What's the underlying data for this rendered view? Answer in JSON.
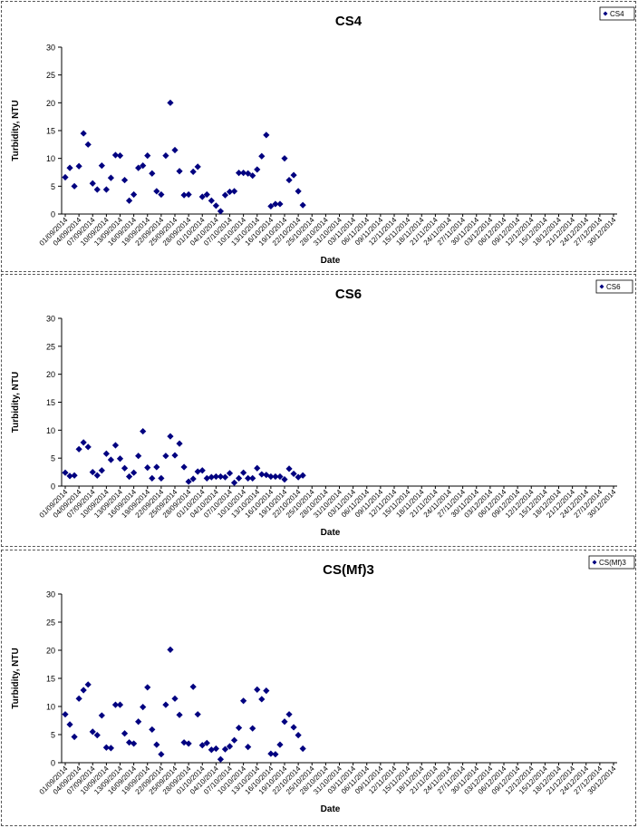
{
  "chart_data": [
    {
      "type": "scatter",
      "title": "CS4",
      "xlabel": "Date",
      "ylabel": "Turbidity, NTU",
      "ylim": [
        0,
        30
      ],
      "yticks": [
        0,
        5,
        10,
        15,
        20,
        25,
        30
      ],
      "legend": "top-right",
      "series": [
        {
          "name": "CS4",
          "color": "#000080",
          "marker": "diamond"
        }
      ],
      "x_tick_labels": [
        "01/09/2014",
        "04/09/2014",
        "07/09/2014",
        "10/09/2014",
        "13/09/2014",
        "16/09/2014",
        "19/09/2014",
        "22/09/2014",
        "25/09/2014",
        "28/09/2014",
        "01/10/2014",
        "04/10/2014",
        "07/10/2014",
        "10/10/2014",
        "13/10/2014",
        "16/10/2014",
        "19/10/2014",
        "22/10/2014",
        "25/10/2014",
        "28/10/2014",
        "31/10/2014",
        "03/11/2014",
        "06/11/2014",
        "09/11/2014",
        "12/11/2014",
        "15/11/2014",
        "18/11/2014",
        "21/11/2014",
        "24/11/2014",
        "27/11/2014",
        "30/11/2014",
        "03/12/2014",
        "06/12/2014",
        "09/12/2014",
        "12/12/2014",
        "15/12/2014",
        "18/12/2014",
        "21/12/2014",
        "24/12/2014",
        "27/12/2014",
        "30/12/2014"
      ],
      "points": [
        {
          "x": "01/09/2014",
          "y": 6.6
        },
        {
          "x": "02/09/2014",
          "y": 8.3
        },
        {
          "x": "03/09/2014",
          "y": 5.0
        },
        {
          "x": "04/09/2014",
          "y": 8.6
        },
        {
          "x": "05/09/2014",
          "y": 14.5
        },
        {
          "x": "06/09/2014",
          "y": 12.5
        },
        {
          "x": "07/09/2014",
          "y": 5.5
        },
        {
          "x": "08/09/2014",
          "y": 4.4
        },
        {
          "x": "09/09/2014",
          "y": 8.7
        },
        {
          "x": "10/09/2014",
          "y": 4.4
        },
        {
          "x": "11/09/2014",
          "y": 6.5
        },
        {
          "x": "12/09/2014",
          "y": 10.6
        },
        {
          "x": "13/09/2014",
          "y": 10.5
        },
        {
          "x": "14/09/2014",
          "y": 6.1
        },
        {
          "x": "15/09/2014",
          "y": 2.4
        },
        {
          "x": "16/09/2014",
          "y": 3.5
        },
        {
          "x": "17/09/2014",
          "y": 8.3
        },
        {
          "x": "18/09/2014",
          "y": 8.7
        },
        {
          "x": "19/09/2014",
          "y": 10.5
        },
        {
          "x": "20/09/2014",
          "y": 7.3
        },
        {
          "x": "21/09/2014",
          "y": 4.1
        },
        {
          "x": "22/09/2014",
          "y": 3.5
        },
        {
          "x": "23/09/2014",
          "y": 10.5
        },
        {
          "x": "24/09/2014",
          "y": 20.0
        },
        {
          "x": "25/09/2014",
          "y": 11.5
        },
        {
          "x": "26/09/2014",
          "y": 7.7
        },
        {
          "x": "27/09/2014",
          "y": 3.4
        },
        {
          "x": "28/09/2014",
          "y": 3.5
        },
        {
          "x": "29/09/2014",
          "y": 7.6
        },
        {
          "x": "30/09/2014",
          "y": 8.5
        },
        {
          "x": "01/10/2014",
          "y": 3.1
        },
        {
          "x": "02/10/2014",
          "y": 3.5
        },
        {
          "x": "03/10/2014",
          "y": 2.4
        },
        {
          "x": "04/10/2014",
          "y": 1.5
        },
        {
          "x": "05/10/2014",
          "y": 0.5
        },
        {
          "x": "06/10/2014",
          "y": 3.4
        },
        {
          "x": "07/10/2014",
          "y": 4.0
        },
        {
          "x": "08/10/2014",
          "y": 4.1
        },
        {
          "x": "09/10/2014",
          "y": 7.4
        },
        {
          "x": "10/10/2014",
          "y": 7.4
        },
        {
          "x": "11/10/2014",
          "y": 7.3
        },
        {
          "x": "12/10/2014",
          "y": 6.9
        },
        {
          "x": "13/10/2014",
          "y": 8.0
        },
        {
          "x": "14/10/2014",
          "y": 10.4
        },
        {
          "x": "15/10/2014",
          "y": 14.2
        },
        {
          "x": "16/10/2014",
          "y": 1.4
        },
        {
          "x": "17/10/2014",
          "y": 1.8
        },
        {
          "x": "18/10/2014",
          "y": 1.8
        },
        {
          "x": "19/10/2014",
          "y": 10.0
        },
        {
          "x": "20/10/2014",
          "y": 6.1
        },
        {
          "x": "21/10/2014",
          "y": 7.0
        },
        {
          "x": "22/10/2014",
          "y": 4.1
        },
        {
          "x": "23/10/2014",
          "y": 1.6
        }
      ]
    },
    {
      "type": "scatter",
      "title": "CS6",
      "xlabel": "Date",
      "ylabel": "Turbidity, NTU",
      "ylim": [
        0,
        30
      ],
      "yticks": [
        0,
        5,
        10,
        15,
        20,
        25,
        30
      ],
      "legend": "top-right",
      "series": [
        {
          "name": "CS6",
          "color": "#000080",
          "marker": "diamond"
        }
      ],
      "x_tick_labels": [
        "01/09/2014",
        "04/09/2014",
        "07/09/2014",
        "10/09/2014",
        "13/09/2014",
        "16/09/2014",
        "19/09/2014",
        "22/09/2014",
        "25/09/2014",
        "28/09/2014",
        "01/10/2014",
        "04/10/2014",
        "07/10/2014",
        "10/10/2014",
        "13/10/2014",
        "16/10/2014",
        "19/10/2014",
        "22/10/2014",
        "25/10/2014",
        "28/10/2014",
        "31/10/2014",
        "03/11/2014",
        "06/11/2014",
        "09/11/2014",
        "12/11/2014",
        "15/11/2014",
        "18/11/2014",
        "21/11/2014",
        "24/11/2014",
        "27/11/2014",
        "30/11/2014",
        "03/12/2014",
        "06/12/2014",
        "09/12/2014",
        "12/12/2014",
        "15/12/2014",
        "18/12/2014",
        "21/12/2014",
        "24/12/2014",
        "27/12/2014",
        "30/12/2014"
      ],
      "points": [
        {
          "x": "01/09/2014",
          "y": 2.4
        },
        {
          "x": "02/09/2014",
          "y": 1.8
        },
        {
          "x": "03/09/2014",
          "y": 1.9
        },
        {
          "x": "04/09/2014",
          "y": 6.6
        },
        {
          "x": "05/09/2014",
          "y": 7.8
        },
        {
          "x": "06/09/2014",
          "y": 7.0
        },
        {
          "x": "07/09/2014",
          "y": 2.5
        },
        {
          "x": "08/09/2014",
          "y": 1.9
        },
        {
          "x": "09/09/2014",
          "y": 2.8
        },
        {
          "x": "10/09/2014",
          "y": 5.8
        },
        {
          "x": "11/09/2014",
          "y": 4.7
        },
        {
          "x": "12/09/2014",
          "y": 7.3
        },
        {
          "x": "13/09/2014",
          "y": 4.9
        },
        {
          "x": "14/09/2014",
          "y": 3.2
        },
        {
          "x": "15/09/2014",
          "y": 1.7
        },
        {
          "x": "16/09/2014",
          "y": 2.4
        },
        {
          "x": "17/09/2014",
          "y": 5.4
        },
        {
          "x": "18/09/2014",
          "y": 9.8
        },
        {
          "x": "19/09/2014",
          "y": 3.3
        },
        {
          "x": "20/09/2014",
          "y": 1.4
        },
        {
          "x": "21/09/2014",
          "y": 3.4
        },
        {
          "x": "22/09/2014",
          "y": 1.4
        },
        {
          "x": "23/09/2014",
          "y": 5.4
        },
        {
          "x": "24/09/2014",
          "y": 8.9
        },
        {
          "x": "25/09/2014",
          "y": 5.5
        },
        {
          "x": "26/09/2014",
          "y": 7.6
        },
        {
          "x": "27/09/2014",
          "y": 3.4
        },
        {
          "x": "28/09/2014",
          "y": 0.8
        },
        {
          "x": "29/09/2014",
          "y": 1.3
        },
        {
          "x": "30/09/2014",
          "y": 2.6
        },
        {
          "x": "01/10/2014",
          "y": 2.8
        },
        {
          "x": "02/10/2014",
          "y": 1.4
        },
        {
          "x": "03/10/2014",
          "y": 1.6
        },
        {
          "x": "04/10/2014",
          "y": 1.7
        },
        {
          "x": "05/10/2014",
          "y": 1.7
        },
        {
          "x": "06/10/2014",
          "y": 1.6
        },
        {
          "x": "07/10/2014",
          "y": 2.3
        },
        {
          "x": "08/10/2014",
          "y": 0.6
        },
        {
          "x": "09/10/2014",
          "y": 1.4
        },
        {
          "x": "10/10/2014",
          "y": 2.4
        },
        {
          "x": "11/10/2014",
          "y": 1.4
        },
        {
          "x": "12/10/2014",
          "y": 1.4
        },
        {
          "x": "13/10/2014",
          "y": 3.2
        },
        {
          "x": "14/10/2014",
          "y": 2.1
        },
        {
          "x": "15/10/2014",
          "y": 2.0
        },
        {
          "x": "16/10/2014",
          "y": 1.7
        },
        {
          "x": "17/10/2014",
          "y": 1.7
        },
        {
          "x": "18/10/2014",
          "y": 1.7
        },
        {
          "x": "19/10/2014",
          "y": 1.2
        },
        {
          "x": "20/10/2014",
          "y": 3.1
        },
        {
          "x": "21/10/2014",
          "y": 2.2
        },
        {
          "x": "22/10/2014",
          "y": 1.6
        },
        {
          "x": "23/10/2014",
          "y": 1.9
        }
      ]
    },
    {
      "type": "scatter",
      "title": "CS(Mf)3",
      "xlabel": "Date",
      "ylabel": "Turbidity, NTU",
      "ylim": [
        0,
        30
      ],
      "yticks": [
        0,
        5,
        10,
        15,
        20,
        25,
        30
      ],
      "legend": "top-right",
      "series": [
        {
          "name": "CS(Mf)3",
          "color": "#000080",
          "marker": "diamond"
        }
      ],
      "x_tick_labels": [
        "01/09/2014",
        "04/09/2014",
        "07/09/2014",
        "10/09/2014",
        "13/09/2014",
        "16/09/2014",
        "19/09/2014",
        "22/09/2014",
        "25/09/2014",
        "28/09/2014",
        "01/10/2014",
        "04/10/2014",
        "07/10/2014",
        "10/10/2014",
        "13/10/2014",
        "16/10/2014",
        "19/10/2014",
        "22/10/2014",
        "25/10/2014",
        "28/10/2014",
        "31/10/2014",
        "03/11/2014",
        "06/11/2014",
        "09/11/2014",
        "12/11/2014",
        "15/11/2014",
        "18/11/2014",
        "21/11/2014",
        "24/11/2014",
        "27/11/2014",
        "30/11/2014",
        "03/12/2014",
        "06/12/2014",
        "09/12/2014",
        "12/12/2014",
        "15/12/2014",
        "18/12/2014",
        "21/12/2014",
        "24/12/2014",
        "27/12/2014",
        "30/12/2014"
      ],
      "points": [
        {
          "x": "01/09/2014",
          "y": 8.6
        },
        {
          "x": "02/09/2014",
          "y": 6.8
        },
        {
          "x": "03/09/2014",
          "y": 4.6
        },
        {
          "x": "04/09/2014",
          "y": 11.4
        },
        {
          "x": "05/09/2014",
          "y": 12.9
        },
        {
          "x": "06/09/2014",
          "y": 13.9
        },
        {
          "x": "07/09/2014",
          "y": 5.5
        },
        {
          "x": "08/09/2014",
          "y": 4.9
        },
        {
          "x": "09/09/2014",
          "y": 8.4
        },
        {
          "x": "10/09/2014",
          "y": 2.7
        },
        {
          "x": "11/09/2014",
          "y": 2.6
        },
        {
          "x": "12/09/2014",
          "y": 10.3
        },
        {
          "x": "13/09/2014",
          "y": 10.3
        },
        {
          "x": "14/09/2014",
          "y": 5.2
        },
        {
          "x": "15/09/2014",
          "y": 3.6
        },
        {
          "x": "16/09/2014",
          "y": 3.4
        },
        {
          "x": "17/09/2014",
          "y": 7.3
        },
        {
          "x": "18/09/2014",
          "y": 9.9
        },
        {
          "x": "19/09/2014",
          "y": 13.4
        },
        {
          "x": "20/09/2014",
          "y": 5.9
        },
        {
          "x": "21/09/2014",
          "y": 3.2
        },
        {
          "x": "22/09/2014",
          "y": 1.5
        },
        {
          "x": "23/09/2014",
          "y": 10.3
        },
        {
          "x": "24/09/2014",
          "y": 20.1
        },
        {
          "x": "25/09/2014",
          "y": 11.4
        },
        {
          "x": "26/09/2014",
          "y": 8.5
        },
        {
          "x": "27/09/2014",
          "y": 3.6
        },
        {
          "x": "28/09/2014",
          "y": 3.4
        },
        {
          "x": "29/09/2014",
          "y": 13.5
        },
        {
          "x": "30/09/2014",
          "y": 8.6
        },
        {
          "x": "01/10/2014",
          "y": 3.1
        },
        {
          "x": "02/10/2014",
          "y": 3.5
        },
        {
          "x": "03/10/2014",
          "y": 2.3
        },
        {
          "x": "04/10/2014",
          "y": 2.5
        },
        {
          "x": "05/10/2014",
          "y": 0.6
        },
        {
          "x": "06/10/2014",
          "y": 2.4
        },
        {
          "x": "07/10/2014",
          "y": 2.9
        },
        {
          "x": "08/10/2014",
          "y": 4.0
        },
        {
          "x": "09/10/2014",
          "y": 6.2
        },
        {
          "x": "10/10/2014",
          "y": 11.0
        },
        {
          "x": "11/10/2014",
          "y": 2.8
        },
        {
          "x": "12/10/2014",
          "y": 6.1
        },
        {
          "x": "13/10/2014",
          "y": 13.0
        },
        {
          "x": "14/10/2014",
          "y": 11.3
        },
        {
          "x": "15/10/2014",
          "y": 12.8
        },
        {
          "x": "16/10/2014",
          "y": 1.6
        },
        {
          "x": "17/10/2014",
          "y": 1.5
        },
        {
          "x": "18/10/2014",
          "y": 3.2
        },
        {
          "x": "19/10/2014",
          "y": 7.3
        },
        {
          "x": "20/10/2014",
          "y": 8.6
        },
        {
          "x": "21/10/2014",
          "y": 6.3
        },
        {
          "x": "22/10/2014",
          "y": 4.9
        },
        {
          "x": "23/10/2014",
          "y": 2.5
        }
      ]
    }
  ]
}
